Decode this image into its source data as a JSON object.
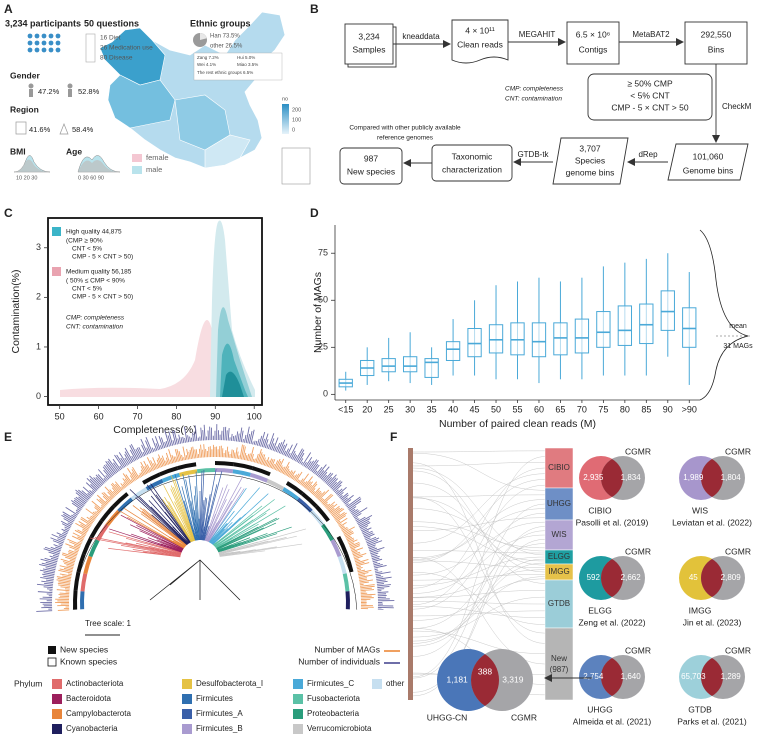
{
  "panel_a": {
    "label": "A",
    "participants": "3,234 participants",
    "questions": "50 questions",
    "question_items": [
      "16 Diet",
      "26 Medication use",
      "80 Disease"
    ],
    "gender": "Gender",
    "gender_values": [
      "47.2%",
      "52.8%"
    ],
    "region": "Region",
    "region_values": [
      "41.6%",
      "58.4%"
    ],
    "bmi": "BMI",
    "bmi_ticks": "10    20    30",
    "age": "Age",
    "age_ticks": "0   30   60  90",
    "sex_legend": [
      {
        "name": "female",
        "color": "#f4c7d2"
      },
      {
        "name": "male",
        "color": "#b9e3ec"
      }
    ],
    "ethnic_title": "Ethnic groups",
    "ethnic_major": [
      "Han 73.5%",
      "other 26.5%"
    ],
    "ethnic_minor": [
      "Zang 7.2%",
      "Hui 5.0%",
      "Wei 4.1%",
      "Miao 3.5%",
      "The rest ethnic groups 6.5%"
    ],
    "map_legend_title": "no",
    "map_legend_ticks": [
      "200",
      "100",
      "0"
    ]
  },
  "panel_b": {
    "label": "B",
    "samples": [
      "3,234",
      "Samples"
    ],
    "clean_reads": [
      "4 × 10¹¹",
      "Clean reads"
    ],
    "contigs": [
      "6.5 × 10⁶",
      "Contigs"
    ],
    "bins": [
      "292,550",
      "Bins"
    ],
    "filters": [
      "≥ 50% CMP",
      "< 5%  CNT",
      "CMP -  5 × CNT > 50"
    ],
    "filter_notes": [
      "CMP: completeness",
      "CNT: contamination"
    ],
    "genome_bins": [
      "101,060",
      "Genome bins"
    ],
    "species_bins": [
      "3,707",
      "Species",
      "genome bins"
    ],
    "taxonomy": [
      "Taxonomic",
      "characterization"
    ],
    "new_species": [
      "987",
      "New species"
    ],
    "comparison_note": [
      "Compared with other publicly available",
      "reference genomes"
    ],
    "tools": [
      "kneaddata",
      "MEGAHIT",
      "MetaBAT2",
      "CheckM",
      "dRep",
      "GTDB-tk"
    ]
  },
  "chart_data": [
    {
      "type": "density",
      "panel_label": "C",
      "xlabel": "Completeness(%)",
      "ylabel": "Contamination(%)",
      "xlim": [
        47,
        102
      ],
      "ylim": [
        -0.17,
        3.6
      ],
      "xticks": [
        50,
        60,
        70,
        80,
        90,
        100
      ],
      "yticks": [
        0,
        1,
        2,
        3
      ],
      "legend": [
        {
          "name": "High quality 44,875",
          "color": "#3bb4c8",
          "criteria": [
            "(CMP ≥ 90%",
            "CNT < 5%",
            "CMP - 5 × CNT > 50)"
          ]
        },
        {
          "name": "Medium quality 56,185",
          "color": "#e9a3b0",
          "criteria": [
            "( 50% ≤ CMP < 90%",
            "CNT < 5%",
            "CMP - 5 × CNT > 50)"
          ]
        }
      ],
      "notes": [
        "CMP: completeness",
        "CNT: contamination"
      ]
    },
    {
      "type": "box",
      "panel_label": "D",
      "xlabel": "Number of paired clean reads (M)",
      "ylabel": "Number of MAGs",
      "categories": [
        "<15",
        "20",
        "25",
        "30",
        "35",
        "40",
        "45",
        "50",
        "55",
        "60",
        "65",
        "70",
        "75",
        "80",
        "85",
        "90",
        ">90"
      ],
      "min": [
        2,
        5,
        7,
        6,
        5,
        10,
        10,
        8,
        8,
        6,
        8,
        8,
        10,
        10,
        10,
        20,
        5
      ],
      "q1": [
        4,
        10,
        12,
        12,
        9,
        18,
        20,
        22,
        21,
        20,
        21,
        22,
        25,
        26,
        27,
        34,
        25
      ],
      "median": [
        6,
        14,
        15,
        15,
        17,
        24,
        27,
        29,
        29,
        28,
        30,
        30,
        33,
        34,
        37,
        44,
        35
      ],
      "q3": [
        8,
        18,
        19,
        20,
        19,
        28,
        35,
        37,
        38,
        38,
        38,
        40,
        44,
        47,
        48,
        55,
        46
      ],
      "max": [
        12,
        25,
        30,
        33,
        25,
        40,
        50,
        58,
        60,
        62,
        60,
        62,
        68,
        70,
        72,
        75,
        65
      ],
      "color": "#4aa9d8",
      "ylim": [
        -3,
        90
      ],
      "yticks": [
        0,
        25,
        50,
        75
      ],
      "annotation": [
        "mean",
        "31 MAGs"
      ]
    }
  ],
  "panel_e": {
    "label": "E",
    "tree_scale": "Tree scale: 1",
    "species_legend": [
      "New species",
      "Known species"
    ],
    "ring_legend": [
      {
        "name": "Number of MAGs",
        "color": "#f0a060"
      },
      {
        "name": "Number of individuals",
        "color": "#6e6ea8"
      }
    ],
    "phylum_title": "Phylum",
    "phyla": [
      {
        "name": "Actinobacteriota",
        "color": "#e06b6b"
      },
      {
        "name": "Bacteroidota",
        "color": "#9c1f5c"
      },
      {
        "name": "Campylobacterota",
        "color": "#e8853b"
      },
      {
        "name": "Cyanobacteria",
        "color": "#1f1f5e"
      },
      {
        "name": "Desulfobacterota_I",
        "color": "#e5c244"
      },
      {
        "name": "Firmicutes",
        "color": "#2f6fb0"
      },
      {
        "name": "Firmicutes_A",
        "color": "#3a5fa8"
      },
      {
        "name": "Firmicutes_B",
        "color": "#a99bd0"
      },
      {
        "name": "Firmicutes_C",
        "color": "#4aa9d8"
      },
      {
        "name": "Fusobacteriota",
        "color": "#5bc1a6"
      },
      {
        "name": "Proteobacteria",
        "color": "#2a9d7c"
      },
      {
        "name": "Verrucomicrobiota",
        "color": "#c8c8c8"
      },
      {
        "name": "other",
        "color": "#c6dff0"
      }
    ]
  },
  "panel_f": {
    "label": "F",
    "cgmr_label": "CGMR",
    "databases": [
      {
        "name": "CIBIO",
        "color": "#e07b80"
      },
      {
        "name": "UHGG",
        "color": "#6e8fc6"
      },
      {
        "name": "WIS",
        "color": "#b3a6d3"
      },
      {
        "name": "ELGG",
        "color": "#1f9fa2"
      },
      {
        "name": "IMGG",
        "color": "#e6c24a"
      },
      {
        "name": "GTDB",
        "color": "#9bcdd8"
      },
      {
        "name": "New",
        "count": "(987)",
        "color": "#b5b5b5"
      }
    ],
    "venns": [
      {
        "name": "CIBIO",
        "reference": "Pasolli et al.  (2019)",
        "only": "2,935",
        "cgmr_only": "1,834",
        "color": "#e06b74"
      },
      {
        "name": "WIS",
        "reference": "Leviatan et al.  (2022)",
        "only": "1,989",
        "cgmr_only": "1,804",
        "color": "#a796cc"
      },
      {
        "name": "ELGG",
        "reference": "Zeng et al. (2022)",
        "only": "592",
        "cgmr_only": "2,662",
        "color": "#1e9ba0"
      },
      {
        "name": "IMGG",
        "reference": "Jin et al. (2023)",
        "only": "45",
        "cgmr_only": "2,809",
        "color": "#e2c23a"
      },
      {
        "name": "UHGG",
        "reference": "Almeida et al.  (2021)",
        "only": "2,754",
        "cgmr_only": "1,640",
        "color": "#5c82be"
      },
      {
        "name": "GTDB",
        "reference": "Parks et al. (2021)",
        "only": "65,703",
        "cgmr_only": "1,289",
        "color": "#9dd0da"
      }
    ],
    "combined": {
      "name": "UHGG-CN",
      "only": "1,181",
      "shared": "388",
      "cgmr_only": "3,319",
      "color": "#4a76b8"
    }
  }
}
